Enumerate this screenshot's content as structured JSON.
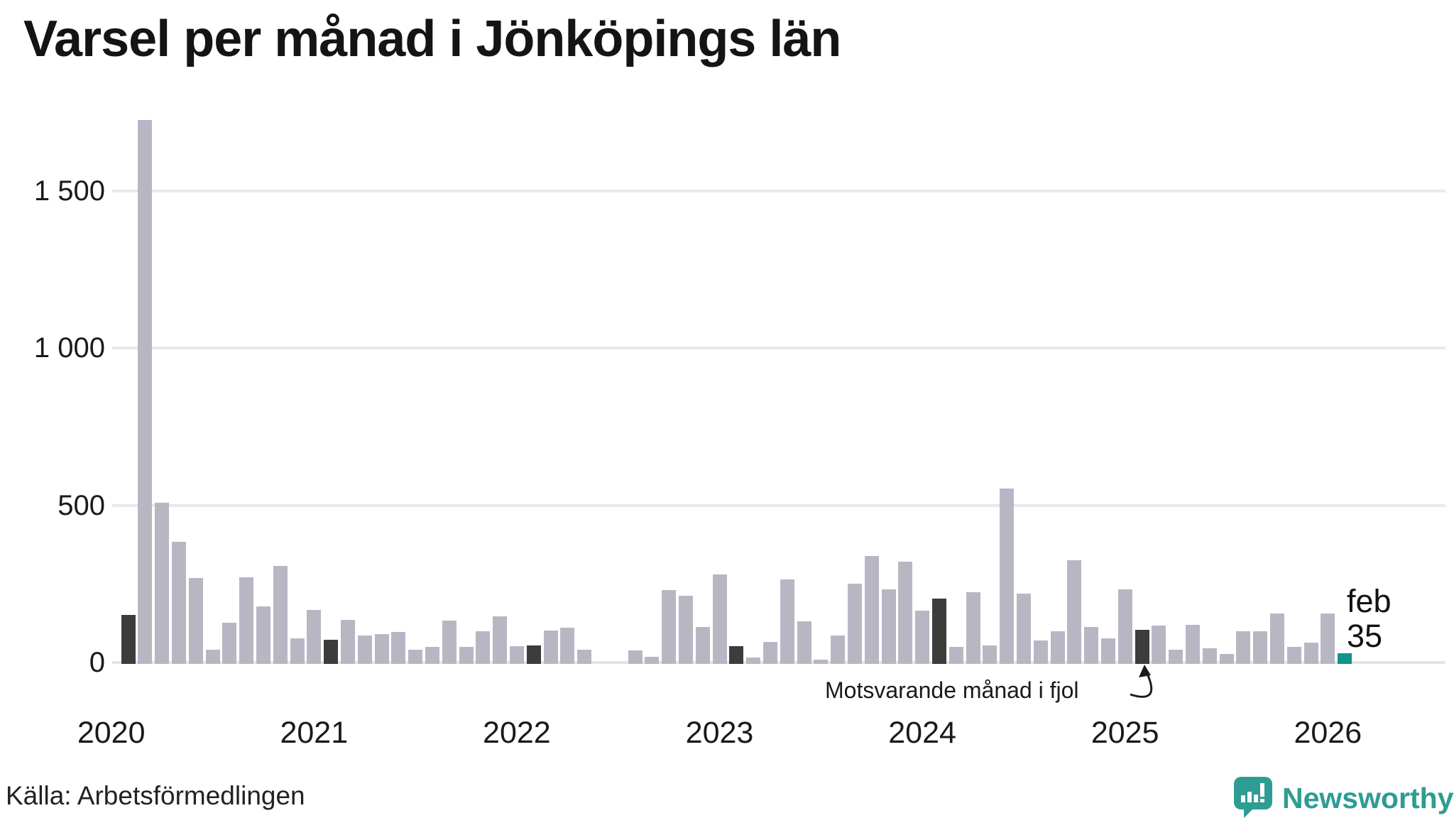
{
  "page": {
    "title": "Varsel per månad i Jönköpings län",
    "source": "Källa: Arbetsförmedlingen"
  },
  "annotation": {
    "text": "Motsvarande månad i fjol"
  },
  "current_point_label": {
    "line1": "feb",
    "line2": "35"
  },
  "logo": {
    "text": "Newsworthy"
  },
  "colors": {
    "bar_light": "#b9b6c4",
    "bar_dark": "#3c3c3c",
    "bar_teal": "#12948a",
    "grid": "#e8e8ee",
    "text": "#1a1a1a",
    "logo_teal": "#2e9c92"
  },
  "chart_data": {
    "type": "bar",
    "title": "Varsel per månad i Jönköpings län",
    "xlabel": "",
    "ylabel": "",
    "ylim": [
      0,
      1769
    ],
    "grid": "horizontal",
    "y_ticks": [
      {
        "value": 0,
        "label": "0"
      },
      {
        "value": 500,
        "label": "500"
      },
      {
        "value": 1000,
        "label": "1 000"
      },
      {
        "value": 1500,
        "label": "1 500"
      }
    ],
    "x_year_labels": [
      "2020",
      "2021",
      "2022",
      "2023",
      "2024",
      "2025",
      "2026"
    ],
    "start_month": "2020-02",
    "end_month": "2026-02",
    "legend_note": "dark bars = Motsvarande månad i fjol (February of each year), teal bar = current month",
    "months": [
      {
        "label": "feb 2020",
        "value": 155,
        "kind": "prev-feb"
      },
      {
        "label": "mar 2020",
        "value": 1730,
        "kind": "default"
      },
      {
        "label": "apr 2020",
        "value": 513,
        "kind": "default"
      },
      {
        "label": "maj 2020",
        "value": 389,
        "kind": "default"
      },
      {
        "label": "jun 2020",
        "value": 274,
        "kind": "default"
      },
      {
        "label": "jul 2020",
        "value": 45,
        "kind": "default"
      },
      {
        "label": "aug 2020",
        "value": 130,
        "kind": "default"
      },
      {
        "label": "sep 2020",
        "value": 276,
        "kind": "default"
      },
      {
        "label": "okt 2020",
        "value": 183,
        "kind": "default"
      },
      {
        "label": "nov 2020",
        "value": 312,
        "kind": "default"
      },
      {
        "label": "dec 2020",
        "value": 81,
        "kind": "default"
      },
      {
        "label": "jan 2021",
        "value": 172,
        "kind": "default"
      },
      {
        "label": "feb 2021",
        "value": 77,
        "kind": "prev-feb"
      },
      {
        "label": "mar 2021",
        "value": 140,
        "kind": "default"
      },
      {
        "label": "apr 2021",
        "value": 90,
        "kind": "default"
      },
      {
        "label": "maj 2021",
        "value": 95,
        "kind": "default"
      },
      {
        "label": "jun 2021",
        "value": 102,
        "kind": "default"
      },
      {
        "label": "jul 2021",
        "value": 45,
        "kind": "default"
      },
      {
        "label": "aug 2021",
        "value": 54,
        "kind": "default"
      },
      {
        "label": "sep 2021",
        "value": 138,
        "kind": "default"
      },
      {
        "label": "okt 2021",
        "value": 54,
        "kind": "default"
      },
      {
        "label": "nov 2021",
        "value": 105,
        "kind": "default"
      },
      {
        "label": "dec 2021",
        "value": 152,
        "kind": "default"
      },
      {
        "label": "jan 2022",
        "value": 57,
        "kind": "default"
      },
      {
        "label": "feb 2022",
        "value": 59,
        "kind": "prev-feb"
      },
      {
        "label": "mar 2022",
        "value": 106,
        "kind": "default"
      },
      {
        "label": "apr 2022",
        "value": 115,
        "kind": "default"
      },
      {
        "label": "maj 2022",
        "value": 45,
        "kind": "default"
      },
      {
        "label": "jun 2022",
        "value": 0,
        "kind": "default"
      },
      {
        "label": "jul 2022",
        "value": 0,
        "kind": "default"
      },
      {
        "label": "aug 2022",
        "value": 43,
        "kind": "default"
      },
      {
        "label": "sep 2022",
        "value": 22,
        "kind": "default"
      },
      {
        "label": "okt 2022",
        "value": 235,
        "kind": "default"
      },
      {
        "label": "nov 2022",
        "value": 217,
        "kind": "default"
      },
      {
        "label": "dec 2022",
        "value": 118,
        "kind": "default"
      },
      {
        "label": "jan 2023",
        "value": 285,
        "kind": "default"
      },
      {
        "label": "feb 2023",
        "value": 57,
        "kind": "prev-feb"
      },
      {
        "label": "mar 2023",
        "value": 20,
        "kind": "default"
      },
      {
        "label": "apr 2023",
        "value": 70,
        "kind": "default"
      },
      {
        "label": "maj 2023",
        "value": 269,
        "kind": "default"
      },
      {
        "label": "jun 2023",
        "value": 136,
        "kind": "default"
      },
      {
        "label": "jul 2023",
        "value": 14,
        "kind": "default"
      },
      {
        "label": "aug 2023",
        "value": 90,
        "kind": "default"
      },
      {
        "label": "sep 2023",
        "value": 256,
        "kind": "default"
      },
      {
        "label": "okt 2023",
        "value": 344,
        "kind": "default"
      },
      {
        "label": "nov 2023",
        "value": 238,
        "kind": "default"
      },
      {
        "label": "dec 2023",
        "value": 326,
        "kind": "default"
      },
      {
        "label": "jan 2024",
        "value": 169,
        "kind": "default"
      },
      {
        "label": "feb 2024",
        "value": 208,
        "kind": "prev-feb"
      },
      {
        "label": "mar 2024",
        "value": 54,
        "kind": "default"
      },
      {
        "label": "apr 2024",
        "value": 229,
        "kind": "default"
      },
      {
        "label": "maj 2024",
        "value": 59,
        "kind": "default"
      },
      {
        "label": "jun 2024",
        "value": 559,
        "kind": "default"
      },
      {
        "label": "jul 2024",
        "value": 224,
        "kind": "default"
      },
      {
        "label": "aug 2024",
        "value": 75,
        "kind": "default"
      },
      {
        "label": "sep 2024",
        "value": 104,
        "kind": "default"
      },
      {
        "label": "okt 2024",
        "value": 330,
        "kind": "default"
      },
      {
        "label": "nov 2024",
        "value": 118,
        "kind": "default"
      },
      {
        "label": "dec 2024",
        "value": 81,
        "kind": "default"
      },
      {
        "label": "jan 2025",
        "value": 237,
        "kind": "default"
      },
      {
        "label": "feb 2025",
        "value": 108,
        "kind": "prev-feb"
      },
      {
        "label": "mar 2025",
        "value": 122,
        "kind": "default"
      },
      {
        "label": "apr 2025",
        "value": 45,
        "kind": "default"
      },
      {
        "label": "maj 2025",
        "value": 124,
        "kind": "default"
      },
      {
        "label": "jun 2025",
        "value": 50,
        "kind": "default"
      },
      {
        "label": "jul 2025",
        "value": 32,
        "kind": "default"
      },
      {
        "label": "aug 2025",
        "value": 104,
        "kind": "default"
      },
      {
        "label": "sep 2025",
        "value": 104,
        "kind": "default"
      },
      {
        "label": "okt 2025",
        "value": 161,
        "kind": "default"
      },
      {
        "label": "nov 2025",
        "value": 54,
        "kind": "default"
      },
      {
        "label": "dec 2025",
        "value": 68,
        "kind": "default"
      },
      {
        "label": "jan 2026",
        "value": 160,
        "kind": "default"
      },
      {
        "label": "feb 2026",
        "value": 35,
        "kind": "current"
      }
    ]
  }
}
